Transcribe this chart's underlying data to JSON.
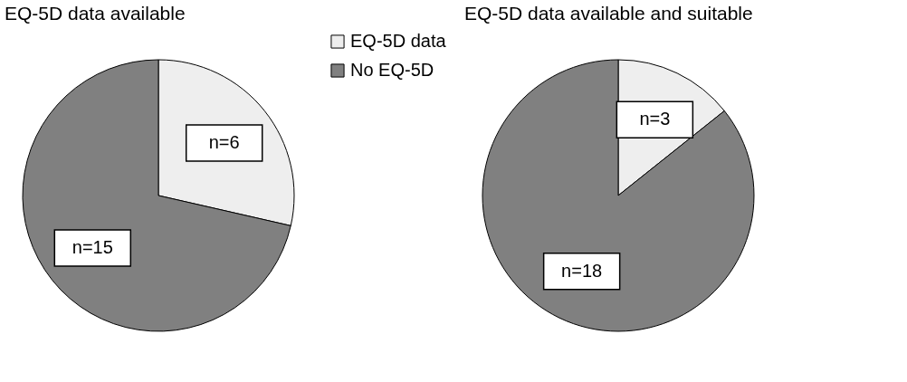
{
  "chart_data": [
    {
      "type": "pie",
      "title": "EQ-5D data available",
      "categories": [
        "EQ-5D data",
        "No EQ-5D"
      ],
      "values": [
        6,
        15
      ],
      "colors": [
        "#eeeeee",
        "#808080"
      ],
      "value_labels": [
        "n=6",
        "n=15"
      ],
      "legend": "right"
    },
    {
      "type": "pie",
      "title": "EQ-5D data available and suitable",
      "categories": [
        null,
        null
      ],
      "values": [
        3,
        18
      ],
      "colors": [
        "#eeeeee",
        "#808080"
      ],
      "value_labels": [
        "n=3",
        "n=18"
      ],
      "legend": false
    }
  ]
}
